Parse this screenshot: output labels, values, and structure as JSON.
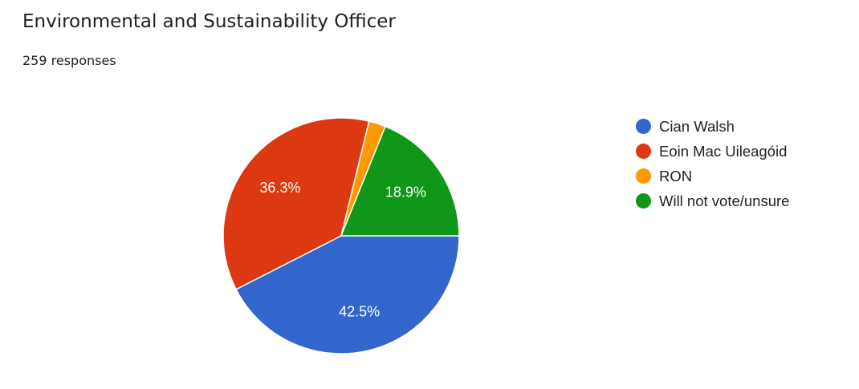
{
  "question": {
    "title": "Environmental and Sustainability Officer",
    "responses_text": "259 responses"
  },
  "chart_data": {
    "type": "pie",
    "categories": [
      "Cian Walsh",
      "Eoin Mac Uileagóid",
      "RON",
      "Will not vote/unsure"
    ],
    "values": [
      42.5,
      36.3,
      2.3,
      18.9
    ],
    "value_labels": [
      "42.5%",
      "36.3%",
      "",
      "18.9%"
    ],
    "colors": [
      "#3366cc",
      "#dc3912",
      "#ff9900",
      "#109618"
    ],
    "legend_position": "right"
  }
}
